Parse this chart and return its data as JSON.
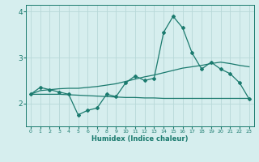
{
  "xlabel": "Humidex (Indice chaleur)",
  "x_values": [
    0,
    1,
    2,
    3,
    4,
    5,
    6,
    7,
    8,
    9,
    10,
    11,
    12,
    13,
    14,
    15,
    16,
    17,
    18,
    19,
    20,
    21,
    22,
    23
  ],
  "y_main": [
    2.2,
    2.35,
    2.3,
    2.25,
    2.2,
    1.75,
    1.85,
    1.9,
    2.2,
    2.15,
    2.45,
    2.6,
    2.5,
    2.55,
    3.55,
    3.9,
    3.65,
    3.1,
    2.75,
    2.9,
    2.75,
    2.65,
    2.45,
    2.1
  ],
  "y_upper": [
    2.2,
    2.28,
    2.3,
    2.32,
    2.33,
    2.33,
    2.35,
    2.37,
    2.4,
    2.43,
    2.48,
    2.53,
    2.58,
    2.62,
    2.67,
    2.72,
    2.77,
    2.8,
    2.83,
    2.87,
    2.9,
    2.87,
    2.83,
    2.8
  ],
  "y_lower": [
    2.2,
    2.2,
    2.2,
    2.2,
    2.19,
    2.18,
    2.17,
    2.16,
    2.15,
    2.14,
    2.13,
    2.13,
    2.12,
    2.12,
    2.11,
    2.11,
    2.11,
    2.11,
    2.11,
    2.11,
    2.11,
    2.11,
    2.11,
    2.11
  ],
  "line_color": "#1a7a6e",
  "bg_color": "#d6eeee",
  "grid_color": "#b8d8d8",
  "ylim": [
    1.5,
    4.15
  ],
  "yticks": [
    2,
    3,
    4
  ],
  "xlim": [
    -0.5,
    23.5
  ]
}
